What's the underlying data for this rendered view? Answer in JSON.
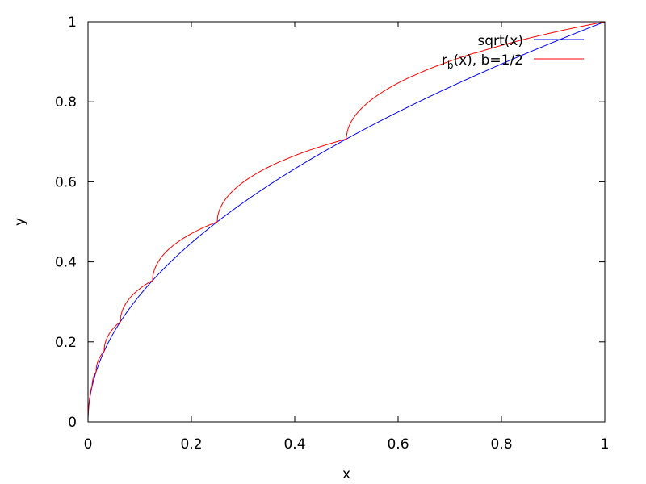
{
  "chart_data": {
    "type": "line",
    "title": "",
    "xlabel": "x",
    "ylabel": "y",
    "xlim": [
      0,
      1
    ],
    "ylim": [
      0,
      1
    ],
    "x_ticks": [
      "0",
      "0.2",
      "0.4",
      "0.6",
      "0.8",
      "1"
    ],
    "y_ticks": [
      "0",
      "0.2",
      "0.4",
      "0.6",
      "0.8",
      "1"
    ],
    "grid": false,
    "legend_position": "top-right",
    "series": [
      {
        "name": "sqrt(x)",
        "color": "#0000ff",
        "function": "sqrt(x)",
        "x": [
          0,
          0.01,
          0.03,
          0.0625,
          0.125,
          0.25,
          0.375,
          0.5,
          0.625,
          0.75,
          0.875,
          1
        ],
        "values": [
          0,
          0.1,
          0.173,
          0.25,
          0.354,
          0.5,
          0.612,
          0.707,
          0.791,
          0.866,
          0.935,
          1
        ]
      },
      {
        "name": "r_b(x), b=1/2",
        "legend_main": "r",
        "legend_sub": "b",
        "legend_rest": "(x), b=1/2",
        "color": "#ff0000",
        "x": [
          0,
          0.01,
          0.03,
          0.0625,
          0.125,
          0.25,
          0.375,
          0.5,
          0.625,
          0.75,
          0.875,
          1
        ],
        "values": [
          0,
          0.12,
          0.2,
          0.25,
          0.354,
          0.5,
          0.65,
          0.707,
          0.85,
          0.91,
          0.97,
          1
        ]
      }
    ]
  }
}
